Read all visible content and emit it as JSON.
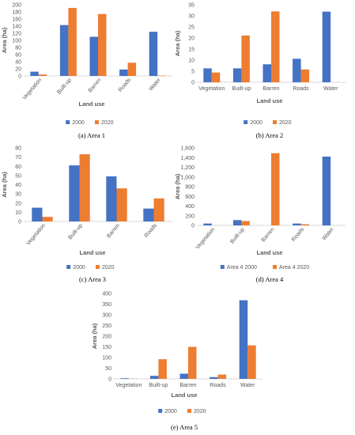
{
  "colors": {
    "s2000": "#4472C4",
    "s2020": "#ED7D31",
    "axis": "#D9D9D9",
    "text": "#595959"
  },
  "chart_data": [
    {
      "type": "bar",
      "caption_letter": "(a)",
      "caption_text": "Area 1",
      "ylabel": "Area (ha)",
      "xlabel": "Land use",
      "categories": [
        "Vegetation",
        "Built-up",
        "Barren",
        "Roads",
        "Water"
      ],
      "rotate_labels": true,
      "ylim": [
        0,
        200
      ],
      "yticks": [
        "0",
        "20",
        "40",
        "60",
        "80",
        "100",
        "120",
        "140",
        "160",
        "180",
        "200"
      ],
      "series": [
        {
          "name": "2000",
          "values": [
            12,
            143,
            110,
            18,
            124
          ]
        },
        {
          "name": "2020",
          "values": [
            4,
            191,
            174,
            37,
            1
          ]
        }
      ]
    },
    {
      "type": "bar",
      "caption_letter": "(b)",
      "caption_text": "Area 2",
      "ylabel": "Area (ha)",
      "xlabel": "Land use",
      "categories": [
        "Vegetation",
        "Built-up",
        "Barren",
        "Roads",
        "Water"
      ],
      "rotate_labels": false,
      "ylim": [
        0,
        35
      ],
      "yticks": [
        "0",
        "5",
        "10",
        "15",
        "20",
        "25",
        "30",
        "35"
      ],
      "series": [
        {
          "name": "2000",
          "values": [
            6.3,
            6.3,
            8.1,
            10.6,
            31.9
          ]
        },
        {
          "name": "2020",
          "values": [
            4.4,
            21.1,
            32,
            5.8,
            0
          ]
        }
      ]
    },
    {
      "type": "bar",
      "caption_letter": "(c)",
      "caption_text": "Area 3",
      "ylabel": "Area (ha)",
      "xlabel": "Land use",
      "categories": [
        "Vegetation",
        "Built-up",
        "Barren",
        "Roads"
      ],
      "rotate_labels": true,
      "ylim": [
        0,
        80
      ],
      "yticks": [
        "0",
        "10",
        "20",
        "30",
        "40",
        "50",
        "60",
        "70",
        "80"
      ],
      "series": [
        {
          "name": "2000",
          "values": [
            15,
            61,
            49,
            14
          ]
        },
        {
          "name": "2020",
          "values": [
            5,
            73,
            36,
            25
          ]
        }
      ]
    },
    {
      "type": "bar",
      "caption_letter": "(d)",
      "caption_text": "Area 4",
      "ylabel": "Area (ha)",
      "xlabel": "Land use",
      "categories": [
        "Vegetation",
        "Built-up",
        "Barren",
        "Roads",
        "Water"
      ],
      "rotate_labels": true,
      "ylim": [
        0,
        1600
      ],
      "yticks": [
        "0",
        "200",
        "400",
        "600",
        "800",
        "1,000",
        "1,200",
        "1,400",
        "1,600"
      ],
      "series": [
        {
          "name": "Area 4 2000",
          "values": [
            40,
            110,
            0,
            40,
            1420
          ]
        },
        {
          "name": "Area 4 2020",
          "values": [
            0,
            90,
            1490,
            25,
            0
          ]
        }
      ]
    },
    {
      "type": "bar",
      "caption_letter": "(e)",
      "caption_text": "Area 5",
      "ylabel": "Area (ha)",
      "xlabel": "Land use",
      "categories": [
        "Vegetation",
        "Built-up",
        "Barren",
        "Roads",
        "Water"
      ],
      "rotate_labels": false,
      "ylim": [
        0,
        400
      ],
      "yticks": [
        "0",
        "50",
        "100",
        "150",
        "200",
        "250",
        "300",
        "350",
        "400"
      ],
      "series": [
        {
          "name": "2000",
          "values": [
            3,
            14,
            24,
            8,
            368
          ]
        },
        {
          "name": "2020",
          "values": [
            1,
            92,
            150,
            20,
            157
          ]
        }
      ]
    }
  ]
}
